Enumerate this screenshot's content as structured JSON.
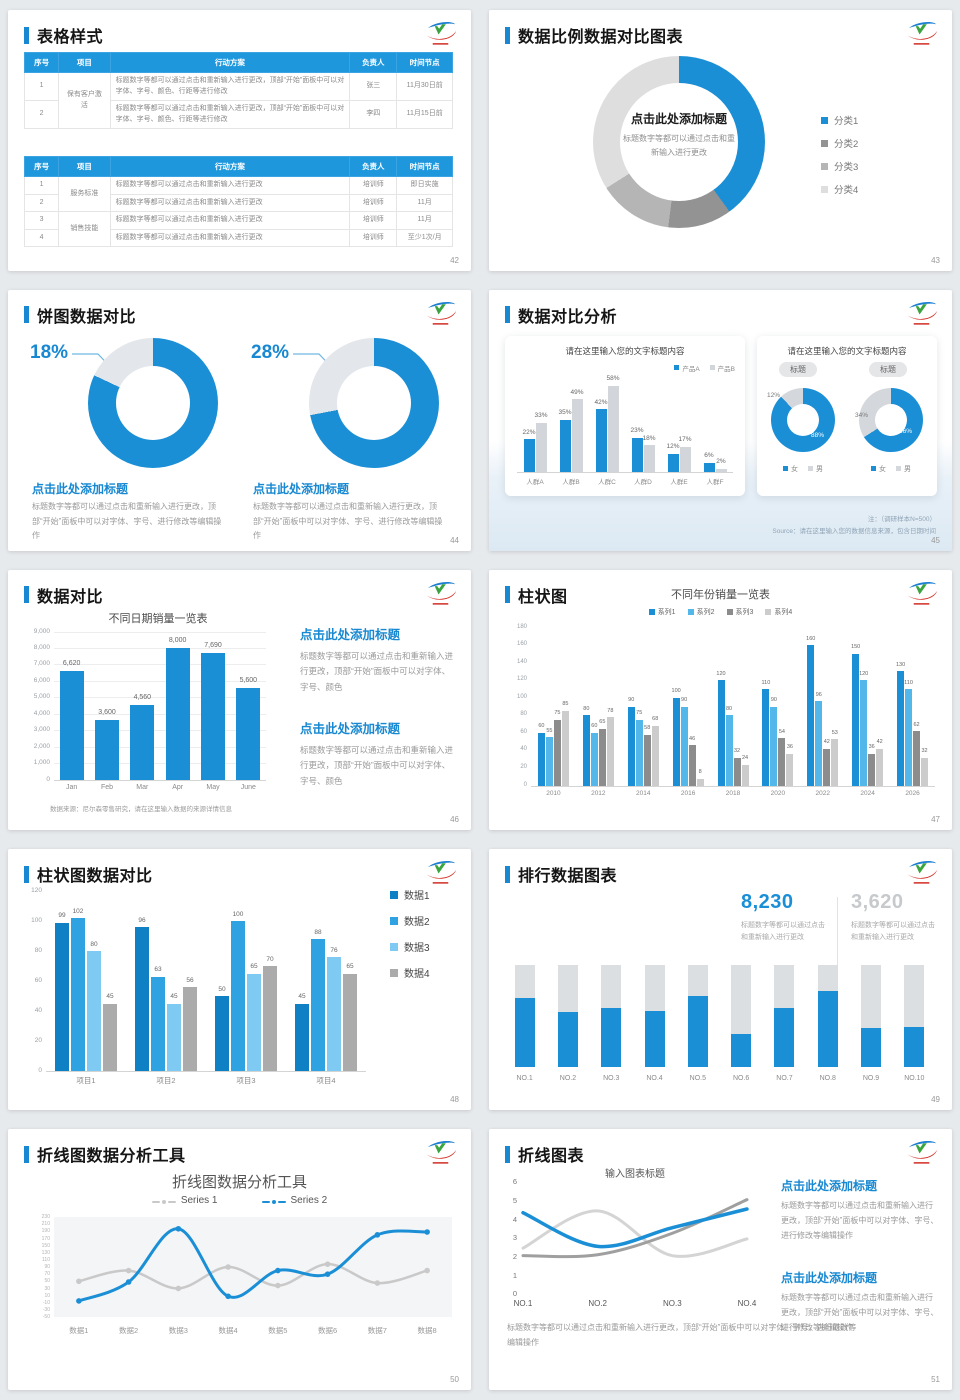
{
  "slides": {
    "s42": {
      "title": "表格样式",
      "page": "42",
      "table1": {
        "headers": [
          "序号",
          "项目",
          "行动方案",
          "负责人",
          "时间节点"
        ],
        "groups": [
          {
            "project": "保有客户激活",
            "rows": [
              {
                "no": "1",
                "plan": "标题数字等都可以通过点击和重新输入进行更改，顶部“开始”面板中可以对字体、字号、颜色、行距等进行修改",
                "owner": "张三",
                "time": "11月30日前"
              },
              {
                "no": "2",
                "plan": "标题数字等都可以通过点击和重新输入进行更改，顶部“开始”面板中可以对字体、字号、颜色、行距等进行修改",
                "owner": "李四",
                "time": "11月15日前"
              }
            ]
          }
        ]
      },
      "table2": {
        "headers": [
          "序号",
          "项目",
          "行动方案",
          "负责人",
          "时间节点"
        ],
        "groups": [
          {
            "project": "服务标准",
            "rows": [
              {
                "no": "1",
                "plan": "标题数字等都可以通过点击和重新输入进行更改",
                "owner": "培训师",
                "time": "即日实施"
              },
              {
                "no": "2",
                "plan": "标题数字等都可以通过点击和重新输入进行更改",
                "owner": "培训师",
                "time": "11月"
              }
            ]
          },
          {
            "project": "销售技能",
            "rows": [
              {
                "no": "3",
                "plan": "标题数字等都可以通过点击和重新输入进行更改",
                "owner": "培训师",
                "time": "11月"
              },
              {
                "no": "4",
                "plan": "标题数字等都可以通过点击和重新输入进行更改",
                "owner": "培训师",
                "time": "至少1次/月"
              }
            ]
          }
        ]
      }
    },
    "s43": {
      "title": "数据比例数据对比图表",
      "page": "43",
      "donut": {
        "type": "pie",
        "slices": [
          {
            "label": "分类1",
            "value": 40,
            "color": "#1b8fd6"
          },
          {
            "label": "分类2",
            "value": 12,
            "color": "#939393"
          },
          {
            "label": "分类3",
            "value": 14,
            "color": "#b5b5b5"
          },
          {
            "label": "分类4",
            "value": 34,
            "color": "#dedede"
          }
        ],
        "center_title": "点击此处添加标题",
        "center_sub": "标题数字等都可以通过点击和重新输入进行更改"
      }
    },
    "s44": {
      "title": "饼图数据对比",
      "page": "44",
      "heading": "点击此处添加标题",
      "body": "标题数字等都可以通过点击和重新输入进行更改，顶部“开始”面板中可以对字体、字号、进行修改等编辑操作",
      "donuts": [
        {
          "percent_label": "18%",
          "value": 18,
          "rest": 82
        },
        {
          "percent_label": "28%",
          "value": 28,
          "rest": 72
        }
      ],
      "colors": {
        "blue": "#1b8fd6",
        "gray": "#e3e6ea"
      }
    },
    "s45": {
      "title": "数据对比分析",
      "page": "45",
      "left_card": {
        "title": "请在这里输入您的文字标题内容",
        "chart": {
          "type": "bar",
          "categories": [
            "人群A",
            "人群B",
            "人群C",
            "人群D",
            "人群E",
            "人群F"
          ],
          "series": [
            {
              "name": "产品A",
              "color": "#1b8fd6",
              "values": [
                22,
                35,
                42,
                23,
                12,
                6
              ],
              "labels": [
                "22%",
                "35%",
                "42%",
                "23%",
                "12%",
                "6%"
              ]
            },
            {
              "name": "产品B",
              "color": "#d2d5d9",
              "values": [
                33,
                49,
                58,
                18,
                17,
                2
              ],
              "labels": [
                "33%",
                "49%",
                "58%",
                "18%",
                "17%",
                "2%"
              ]
            }
          ],
          "ymax": 62
        }
      },
      "right_card": {
        "title": "请在这里输入您的文字标题内容",
        "badge": "标题",
        "donuts": [
          {
            "blue": 88,
            "gray": 12,
            "blue_label": "88%",
            "gray_label": "12%"
          },
          {
            "blue": 66,
            "gray": 34,
            "blue_label": "66%",
            "gray_label": "34%"
          }
        ],
        "legend": [
          "女",
          "男"
        ]
      },
      "note_line1": "注：（调研样本N=500）",
      "note_line2": "Source：请在这里输入您的数据信息来源，包含日期时间"
    },
    "s46": {
      "title": "数据对比",
      "page": "46",
      "chart": {
        "type": "bar",
        "title": "不同日期销量一览表",
        "categories": [
          "Jan",
          "Feb",
          "Mar",
          "Apr",
          "May",
          "June"
        ],
        "values": [
          6620,
          3600,
          4560,
          8000,
          7690,
          5600
        ],
        "labels": [
          "6,620",
          "3,600",
          "4,560",
          "8,000",
          "7,690",
          "5,600"
        ],
        "yticks": [
          "9,000",
          "8,000",
          "7,000",
          "6,000",
          "5,000",
          "4,000",
          "3,000",
          "2,000",
          "1,000",
          "0"
        ],
        "ymax": 9000,
        "color": "#1b8fd6"
      },
      "footnote": "数据来源：尼尔森零售研究，请在这里输入数据的来源详情信息",
      "blocks": [
        {
          "heading": "点击此处添加标题",
          "body": "标题数字等都可以通过点击和重新输入进行更改，顶部“开始”面板中可以对字体、字号、颜色"
        },
        {
          "heading": "点击此处添加标题",
          "body": "标题数字等都可以通过点击和重新输入进行更改，顶部“开始”面板中可以对字体、字号、颜色"
        }
      ]
    },
    "s47": {
      "title": "柱状图",
      "page": "47",
      "chart": {
        "type": "bar",
        "title": "不同年份销量一览表",
        "categories": [
          "2010",
          "2012",
          "2014",
          "2016",
          "2018",
          "2020",
          "2022",
          "2024",
          "2026"
        ],
        "series": [
          {
            "name": "系列1",
            "color": "#1b8fd6",
            "values": [
              60,
              80,
              90,
              100,
              120,
              110,
              160,
              150,
              130
            ]
          },
          {
            "name": "系列2",
            "color": "#53b7ea",
            "values": [
              55,
              60,
              75,
              90,
              80,
              90,
              96,
              120,
              110
            ]
          },
          {
            "name": "系列3",
            "color": "#8c8c8c",
            "values": [
              75,
              65,
              58,
              46,
              32,
              54,
              42,
              36,
              62
            ]
          },
          {
            "name": "系列4",
            "color": "#cccccc",
            "values": [
              85,
              78,
              68,
              8,
              24,
              36,
              53,
              42,
              32
            ]
          }
        ],
        "yticks": [
          "180",
          "160",
          "140",
          "120",
          "100",
          "80",
          "60",
          "40",
          "20",
          "0"
        ],
        "ymax": 180
      }
    },
    "s48": {
      "title": "柱状图数据对比",
      "page": "48",
      "chart": {
        "type": "bar",
        "categories": [
          "项目1",
          "项目2",
          "项目3",
          "项目4"
        ],
        "series": [
          {
            "name": "数据1",
            "color": "#0f80c4",
            "values": [
              99,
              96,
              50,
              45
            ]
          },
          {
            "name": "数据2",
            "color": "#2fa3e2",
            "values": [
              102,
              63,
              100,
              88
            ]
          },
          {
            "name": "数据3",
            "color": "#7ecaf2",
            "values": [
              80,
              45,
              65,
              76
            ]
          },
          {
            "name": "数据4",
            "color": "#ababab",
            "values": [
              45,
              56,
              70,
              65
            ]
          }
        ],
        "yticks": [
          "120",
          "100",
          "80",
          "60",
          "40",
          "20",
          "0"
        ],
        "ymax": 120
      }
    },
    "s49": {
      "title": "排行数据图表",
      "page": "49",
      "stats": [
        {
          "value": "8,230",
          "caption": "标题数字等都可以通过点击和重新输入进行更改",
          "color": "#1b8fd6"
        },
        {
          "value": "3,620",
          "caption": "标题数字等都可以通过点击和重新输入进行更改",
          "color": "#c6cacd"
        }
      ],
      "chart": {
        "type": "bar",
        "categories": [
          "NO.1",
          "NO.2",
          "NO.3",
          "NO.4",
          "NO.5",
          "NO.6",
          "NO.7",
          "NO.8",
          "NO.9",
          "NO.10"
        ],
        "fill_percent": [
          68,
          54,
          58,
          55,
          70,
          33,
          58,
          75,
          39,
          40
        ],
        "bar_color": "#1b8fd6",
        "track_color": "#dcdfe2"
      }
    },
    "s50": {
      "title": "折线图数据分析工具",
      "page": "50",
      "chart": {
        "type": "line",
        "title": "折线图数据分析工具",
        "categories": [
          "数据1",
          "数据2",
          "数据3",
          "数据4",
          "数据5",
          "数据6",
          "数据7",
          "数据8"
        ],
        "series": [
          {
            "name": "Series 1",
            "color": "#c9c9c9",
            "values": [
              50,
              80,
              30,
              90,
              38,
              98,
              45,
              80
            ]
          },
          {
            "name": "Series 2",
            "color": "#1b8fd6",
            "values": [
              -5,
              48,
              197,
              8,
              80,
              70,
              180,
              188
            ]
          }
        ],
        "yticks": [
          "230",
          "210",
          "190",
          "170",
          "150",
          "130",
          "110",
          "90",
          "70",
          "50",
          "30",
          "10",
          "-10",
          "-30",
          "-50"
        ],
        "ymax": 230,
        "ymin": -50
      }
    },
    "s51": {
      "title": "折线图表",
      "page": "51",
      "chart": {
        "type": "line",
        "title": "输入图表标题",
        "categories": [
          "NO.1",
          "NO.2",
          "NO.3",
          "NO.4"
        ],
        "series": [
          {
            "name": "line-blue",
            "color": "#1b8fd6",
            "values": [
              4.3,
              2.5,
              3.5,
              4.5
            ]
          },
          {
            "name": "line-dark-gray",
            "color": "#9f9f9f",
            "values": [
              2,
              2.05,
              3.2,
              5
            ]
          },
          {
            "name": "line-light-gray",
            "color": "#d4d4d4",
            "values": [
              2.4,
              4.4,
              2,
              2.9
            ]
          }
        ],
        "yticks": [
          "6",
          "5",
          "4",
          "3",
          "2",
          "1",
          "0"
        ],
        "ymax": 6,
        "ymin": 0
      },
      "caption": "标题数字等都可以通过点击和重新输入进行更改，顶部“开始”面板中可以对字体、字号、进行修改等编辑操作",
      "blocks": [
        {
          "heading": "点击此处添加标题",
          "body": "标题数字等都可以通过点击和重新输入进行更改，顶部“开始”面板中可以对字体、字号、进行修改等编辑操作"
        },
        {
          "heading": "点击此处添加标题",
          "body": "标题数字等都可以通过点击和重新输入进行更改，顶部“开始”面板中可以对字体、字号、进行修改等编辑操作"
        }
      ]
    }
  }
}
